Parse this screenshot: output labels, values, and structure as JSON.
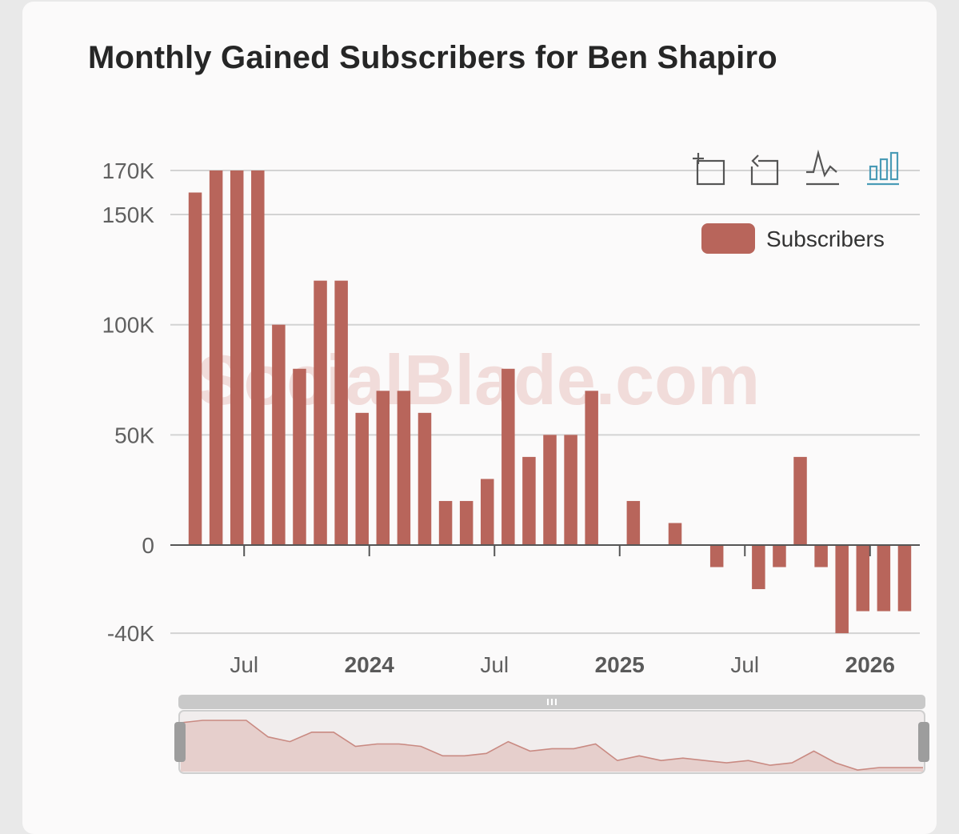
{
  "title": "Monthly Gained Subscribers for Ben Shapiro",
  "watermark": "SocialBlade.com",
  "legend_label": "Subscribers",
  "toolbar": {
    "icons": [
      "zoom-icon",
      "restore-icon",
      "line-chart-icon",
      "bar-chart-icon"
    ],
    "active": "bar-chart-icon"
  },
  "colors": {
    "bar": "#b8655b",
    "grid": "#d3d3d3",
    "axis": "#555555",
    "tick_label": "#606060",
    "toolbar_icon": "#555555",
    "toolbar_active": "#4a9bb6",
    "watermark": "#f1dcda"
  },
  "chart_data": {
    "type": "bar",
    "series": [
      {
        "name": "Subscribers",
        "values": [
          160000,
          170000,
          170000,
          170000,
          100000,
          80000,
          120000,
          120000,
          60000,
          70000,
          70000,
          60000,
          20000,
          20000,
          30000,
          80000,
          40000,
          50000,
          50000,
          70000,
          0,
          20000,
          0,
          10000,
          0,
          -10000,
          0,
          -20000,
          -10000,
          40000,
          -10000,
          -40000,
          -30000,
          -30000,
          -30000
        ]
      }
    ],
    "x_tick_labels": [
      {
        "label": "Jul",
        "index": 2,
        "bold": false
      },
      {
        "label": "2024",
        "index": 8,
        "bold": true
      },
      {
        "label": "Jul",
        "index": 14,
        "bold": false
      },
      {
        "label": "2025",
        "index": 20,
        "bold": true
      },
      {
        "label": "Jul",
        "index": 26,
        "bold": false
      },
      {
        "label": "2026",
        "index": 32,
        "bold": true
      }
    ],
    "y_ticks": [
      {
        "value": 170000,
        "label": "170K"
      },
      {
        "value": 150000,
        "label": "150K"
      },
      {
        "value": 100000,
        "label": "100K"
      },
      {
        "value": 50000,
        "label": "50K"
      },
      {
        "value": 0,
        "label": "0"
      },
      {
        "value": -40000,
        "label": "-40K"
      }
    ],
    "ylim": [
      -40000,
      170000
    ],
    "grid": true,
    "legend_position": "top-right",
    "data_zoom": {
      "start": 0,
      "end": 100
    }
  }
}
